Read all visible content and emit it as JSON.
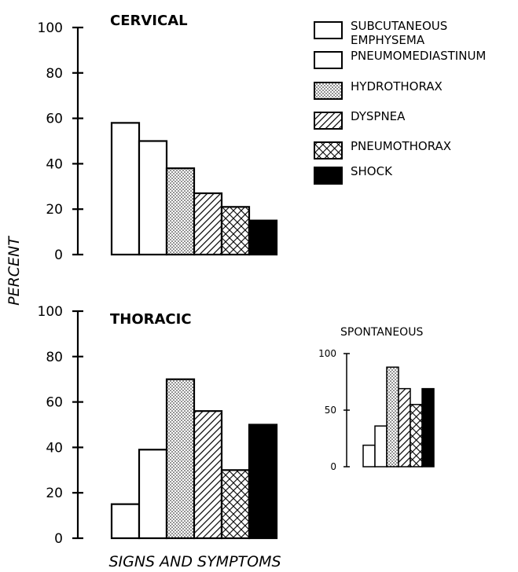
{
  "chart_data": [
    {
      "id": "cervical",
      "type": "bar",
      "title": "CERVICAL",
      "categories": [
        "SUBCUTANEOUS EMPHYSEMA",
        "PNEUMOMEDIASTINUM",
        "HYDROTHORAX",
        "DYSPNEA",
        "PNEUMOTHORAX",
        "SHOCK"
      ],
      "values": [
        58,
        50,
        38,
        27,
        21,
        15
      ],
      "ylim": [
        0,
        100
      ],
      "yticks": [
        "0",
        "20",
        "40",
        "60",
        "80",
        "100"
      ],
      "ylabel": "PERCENT",
      "xlabel": ""
    },
    {
      "id": "thoracic",
      "type": "bar",
      "title": "THORACIC",
      "categories": [
        "SUBCUTANEOUS EMPHYSEMA",
        "PNEUMOMEDIASTINUM",
        "HYDROTHORAX",
        "DYSPNEA",
        "PNEUMOTHORAX",
        "SHOCK"
      ],
      "values": [
        15,
        39,
        70,
        56,
        30,
        50
      ],
      "ylim": [
        0,
        100
      ],
      "yticks": [
        "0",
        "20",
        "40",
        "60",
        "80",
        "100"
      ],
      "ylabel": "PERCENT",
      "xlabel": "SIGNS AND SYMPTOMS"
    },
    {
      "id": "spontaneous",
      "type": "bar",
      "title": "SPONTANEOUS",
      "categories": [
        "SUBCUTANEOUS EMPHYSEMA",
        "PNEUMOMEDIASTINUM",
        "HYDROTHORAX",
        "DYSPNEA",
        "PNEUMOTHORAX",
        "SHOCK"
      ],
      "values": [
        19,
        36,
        88,
        69,
        55,
        69
      ],
      "ylim": [
        0,
        100
      ],
      "yticks": [
        "0",
        "50",
        "100"
      ]
    }
  ],
  "legend": [
    {
      "label": "SUBCUTANEOUS EMPHYSEMA",
      "pattern": "blank"
    },
    {
      "label": "PNEUMOMEDIASTINUM",
      "pattern": "blank"
    },
    {
      "label": "HYDROTHORAX",
      "pattern": "dots"
    },
    {
      "label": "DYSPNEA",
      "pattern": "hatch"
    },
    {
      "label": "PNEUMOTHORAX",
      "pattern": "crosshatch"
    },
    {
      "label": "SHOCK",
      "pattern": "solid"
    }
  ],
  "colors": {
    "ink": "#000000",
    "paper": "#ffffff"
  }
}
